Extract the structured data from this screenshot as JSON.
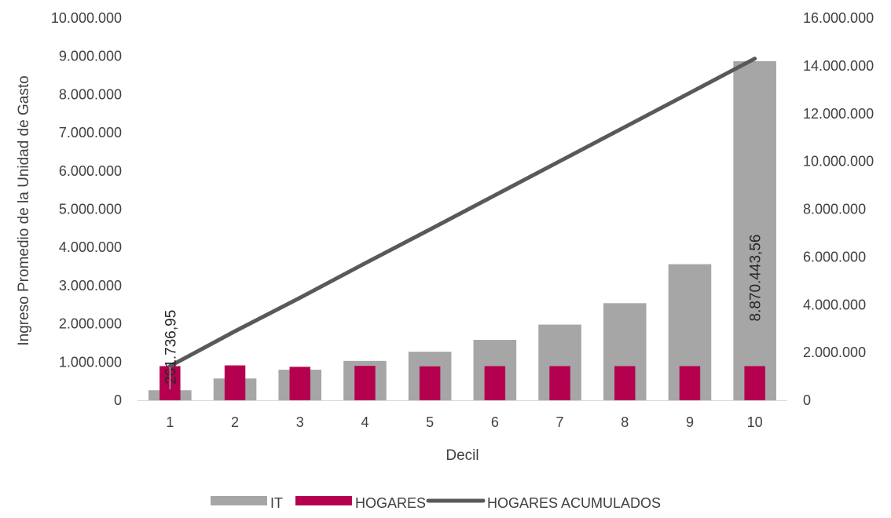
{
  "chart_data": {
    "type": "bar",
    "xlabel": "Decil",
    "ylabel": "Ingreso Promedio de la Unidad de Gasto",
    "categories": [
      "1",
      "2",
      "3",
      "4",
      "5",
      "6",
      "7",
      "8",
      "9",
      "10"
    ],
    "ylim": [
      0,
      10000000
    ],
    "y2lim": [
      0,
      16000000
    ],
    "y_ticks": [
      "0",
      "1.000.000",
      "2.000.000",
      "3.000.000",
      "4.000.000",
      "5.000.000",
      "6.000.000",
      "7.000.000",
      "8.000.000",
      "9.000.000",
      "10.000.000"
    ],
    "y2_ticks": [
      "0",
      "2.000.000",
      "4.000.000",
      "6.000.000",
      "8.000.000",
      "10.000.000",
      "12.000.000",
      "14.000.000",
      "16.000.000"
    ],
    "series": [
      {
        "name": "IT",
        "type": "bar",
        "axis": "left",
        "color": "#a6a6a6",
        "values": [
          261736.95,
          570000,
          800000,
          1030000,
          1270000,
          1580000,
          1980000,
          2540000,
          3560000,
          8870443.56
        ]
      },
      {
        "name": "HOGARES",
        "type": "bar",
        "axis": "right",
        "color": "#b5004f",
        "values": [
          1430000,
          1460000,
          1400000,
          1440000,
          1420000,
          1430000,
          1430000,
          1430000,
          1430000,
          1430000
        ]
      },
      {
        "name": "HOGARES ACUMULADOS",
        "type": "line",
        "axis": "right",
        "color": "#595959",
        "values": [
          1430000,
          2890000,
          4290000,
          5730000,
          7150000,
          8580000,
          10010000,
          11440000,
          12870000,
          14300000
        ]
      }
    ],
    "data_labels": [
      {
        "series": "IT",
        "index": 0,
        "text": "261.736,95"
      },
      {
        "series": "IT",
        "index": 9,
        "text": "8.870.443,56"
      }
    ],
    "legend": "bottom",
    "grid": false
  }
}
